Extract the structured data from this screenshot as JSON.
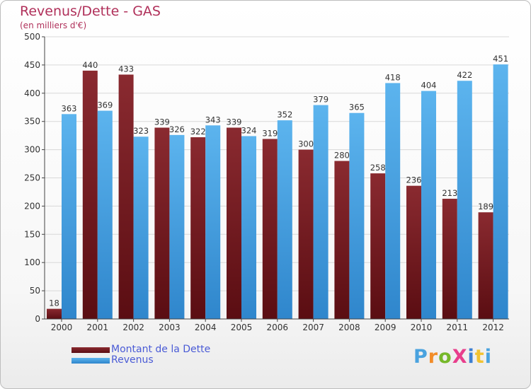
{
  "title": "Revenus/Dette - GAS",
  "subtitle": "(en milliers d'€)",
  "logo": "ProXiti",
  "colors": {
    "dette": "#6e1a1f",
    "revenus": "#46a3e6",
    "axis": "#444444",
    "grid": "#d8d8d8"
  },
  "chart_data": {
    "type": "bar",
    "categories": [
      "2000",
      "2001",
      "2002",
      "2003",
      "2004",
      "2005",
      "2006",
      "2007",
      "2008",
      "2009",
      "2010",
      "2011",
      "2012"
    ],
    "series": [
      {
        "name": "Montant de la Dette",
        "values": [
          18,
          440,
          433,
          339,
          322,
          339,
          319,
          300,
          280,
          258,
          236,
          213,
          189
        ]
      },
      {
        "name": "Revenus",
        "values": [
          363,
          369,
          323,
          326,
          343,
          324,
          352,
          379,
          365,
          418,
          404,
          422,
          451
        ]
      }
    ],
    "ylim": [
      0,
      500
    ],
    "yticks": [
      0,
      50,
      100,
      150,
      200,
      250,
      300,
      350,
      400,
      450,
      500
    ],
    "grid": true,
    "legend_position": "bottom-left"
  }
}
